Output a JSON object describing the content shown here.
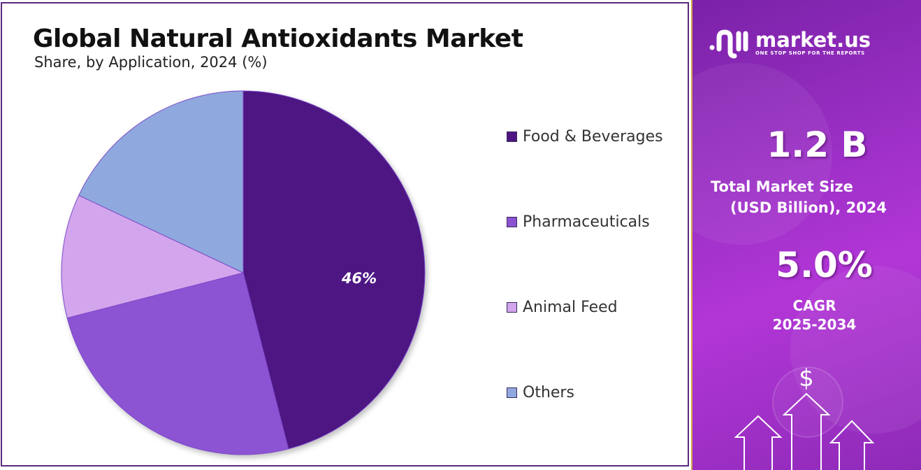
{
  "chart_data": {
    "type": "pie",
    "title": "Global Natural Antioxidants Market",
    "subtitle": "Share, by Application, 2024 (%)",
    "categories": [
      "Food & Beverages",
      "Pharmaceuticals",
      "Animal Feed",
      "Others"
    ],
    "values": [
      46,
      25,
      11,
      18
    ],
    "colors": [
      "#4e1583",
      "#8c52d2",
      "#d3a5ec",
      "#8fa9de"
    ],
    "data_labels": [
      {
        "category": "Food & Beverages",
        "text": "46%"
      }
    ],
    "legend_position": "right"
  },
  "side_panel": {
    "brand": "market.us",
    "tagline": "ONE STOP SHOP FOR THE REPORTS",
    "market_size_value": "1.2 B",
    "market_size_label_line1": "Total Market Size",
    "market_size_label_line2": "(USD Billion), 2024",
    "cagr_value": "5.0%",
    "cagr_label_line1": "CAGR",
    "cagr_label_line2": "2025-2034",
    "dollar_symbol": "$",
    "icons": [
      "logo-icon",
      "dollar-icon",
      "up-arrow-icon"
    ]
  }
}
